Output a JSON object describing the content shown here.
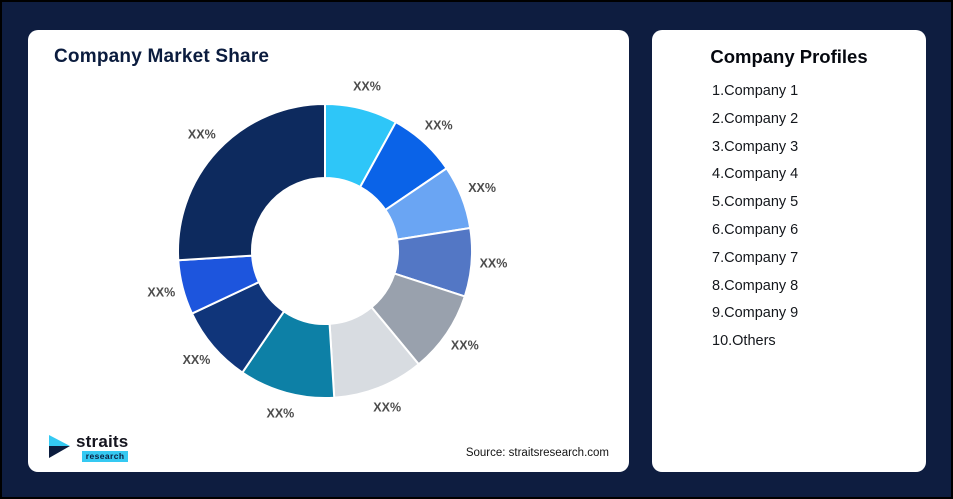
{
  "page": {
    "background": "#0e1d40",
    "card_background": "#ffffff"
  },
  "left_card": {
    "title": "Company Market Share",
    "source": "Source: straitsresearch.com",
    "logo_name": "straits",
    "logo_sub": "research",
    "logo_accent_color": "#35c9f2",
    "logo_dark_color": "#0b1c3e"
  },
  "right_card": {
    "title": "Company Profiles",
    "items": [
      "1.Company 1",
      "2.Company 2",
      "3.Company 3",
      "4.Company 4",
      "5.Company 5",
      "6.Company 6",
      "7.Company 7",
      "8.Company 8",
      "9.Company 9",
      "10.Others"
    ]
  },
  "chart_data": {
    "type": "pie",
    "subtype": "donut",
    "title": "Company Market Share",
    "value_labels_shown": "XX%",
    "start_angle_deg": 0,
    "direction": "clockwise",
    "segments": [
      {
        "name": "Company 1",
        "label": "XX%",
        "value": 8,
        "color": "#2ec6f8"
      },
      {
        "name": "Company 2",
        "label": "XX%",
        "value": 7.5,
        "color": "#0a63e8"
      },
      {
        "name": "Company 3",
        "label": "XX%",
        "value": 7,
        "color": "#6aa5f3"
      },
      {
        "name": "Company 4",
        "label": "XX%",
        "value": 7.5,
        "color": "#5377c5"
      },
      {
        "name": "Company 5",
        "label": "XX%",
        "value": 9,
        "color": "#99a1ad"
      },
      {
        "name": "Company 6",
        "label": "XX%",
        "value": 10,
        "color": "#d8dce1"
      },
      {
        "name": "Company 7",
        "label": "XX%",
        "value": 10.5,
        "color": "#0d80a6"
      },
      {
        "name": "Company 8",
        "label": "XX%",
        "value": 8.5,
        "color": "#10357a"
      },
      {
        "name": "Company 9",
        "label": "XX%",
        "value": 6,
        "color": "#1d55dd"
      },
      {
        "name": "Others",
        "label": "XX%",
        "value": 26,
        "color": "#0d2a5e"
      }
    ]
  }
}
